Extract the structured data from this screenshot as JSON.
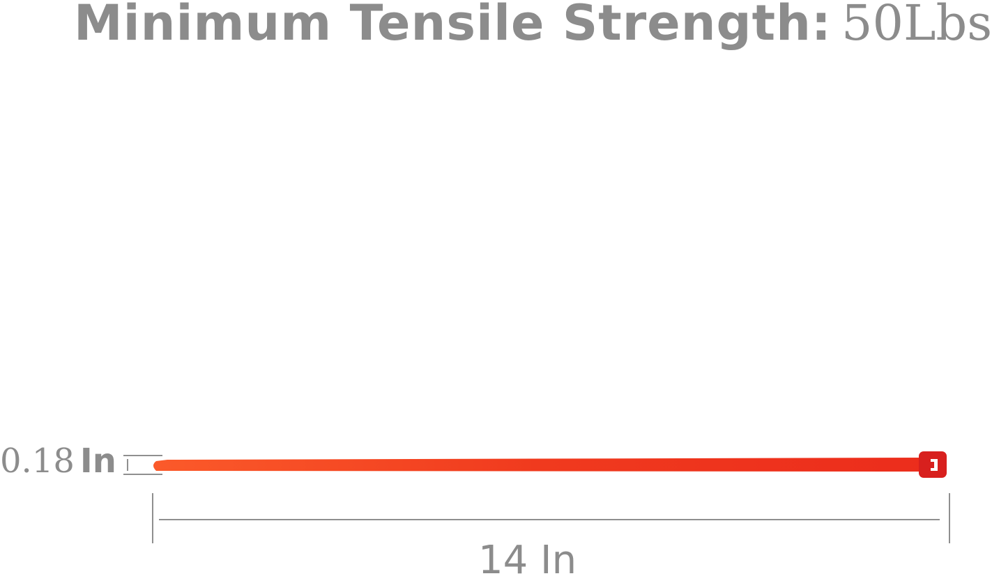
{
  "title": {
    "label": "Minimum Tensile Strength:",
    "value": "50Lbs"
  },
  "dimensions": {
    "width": {
      "value": "0.18",
      "unit": "In"
    },
    "length": "14 In"
  },
  "colors": {
    "tie": "#f23a1c",
    "tie_head": "#d8201e",
    "text": "#8c8c8c"
  }
}
